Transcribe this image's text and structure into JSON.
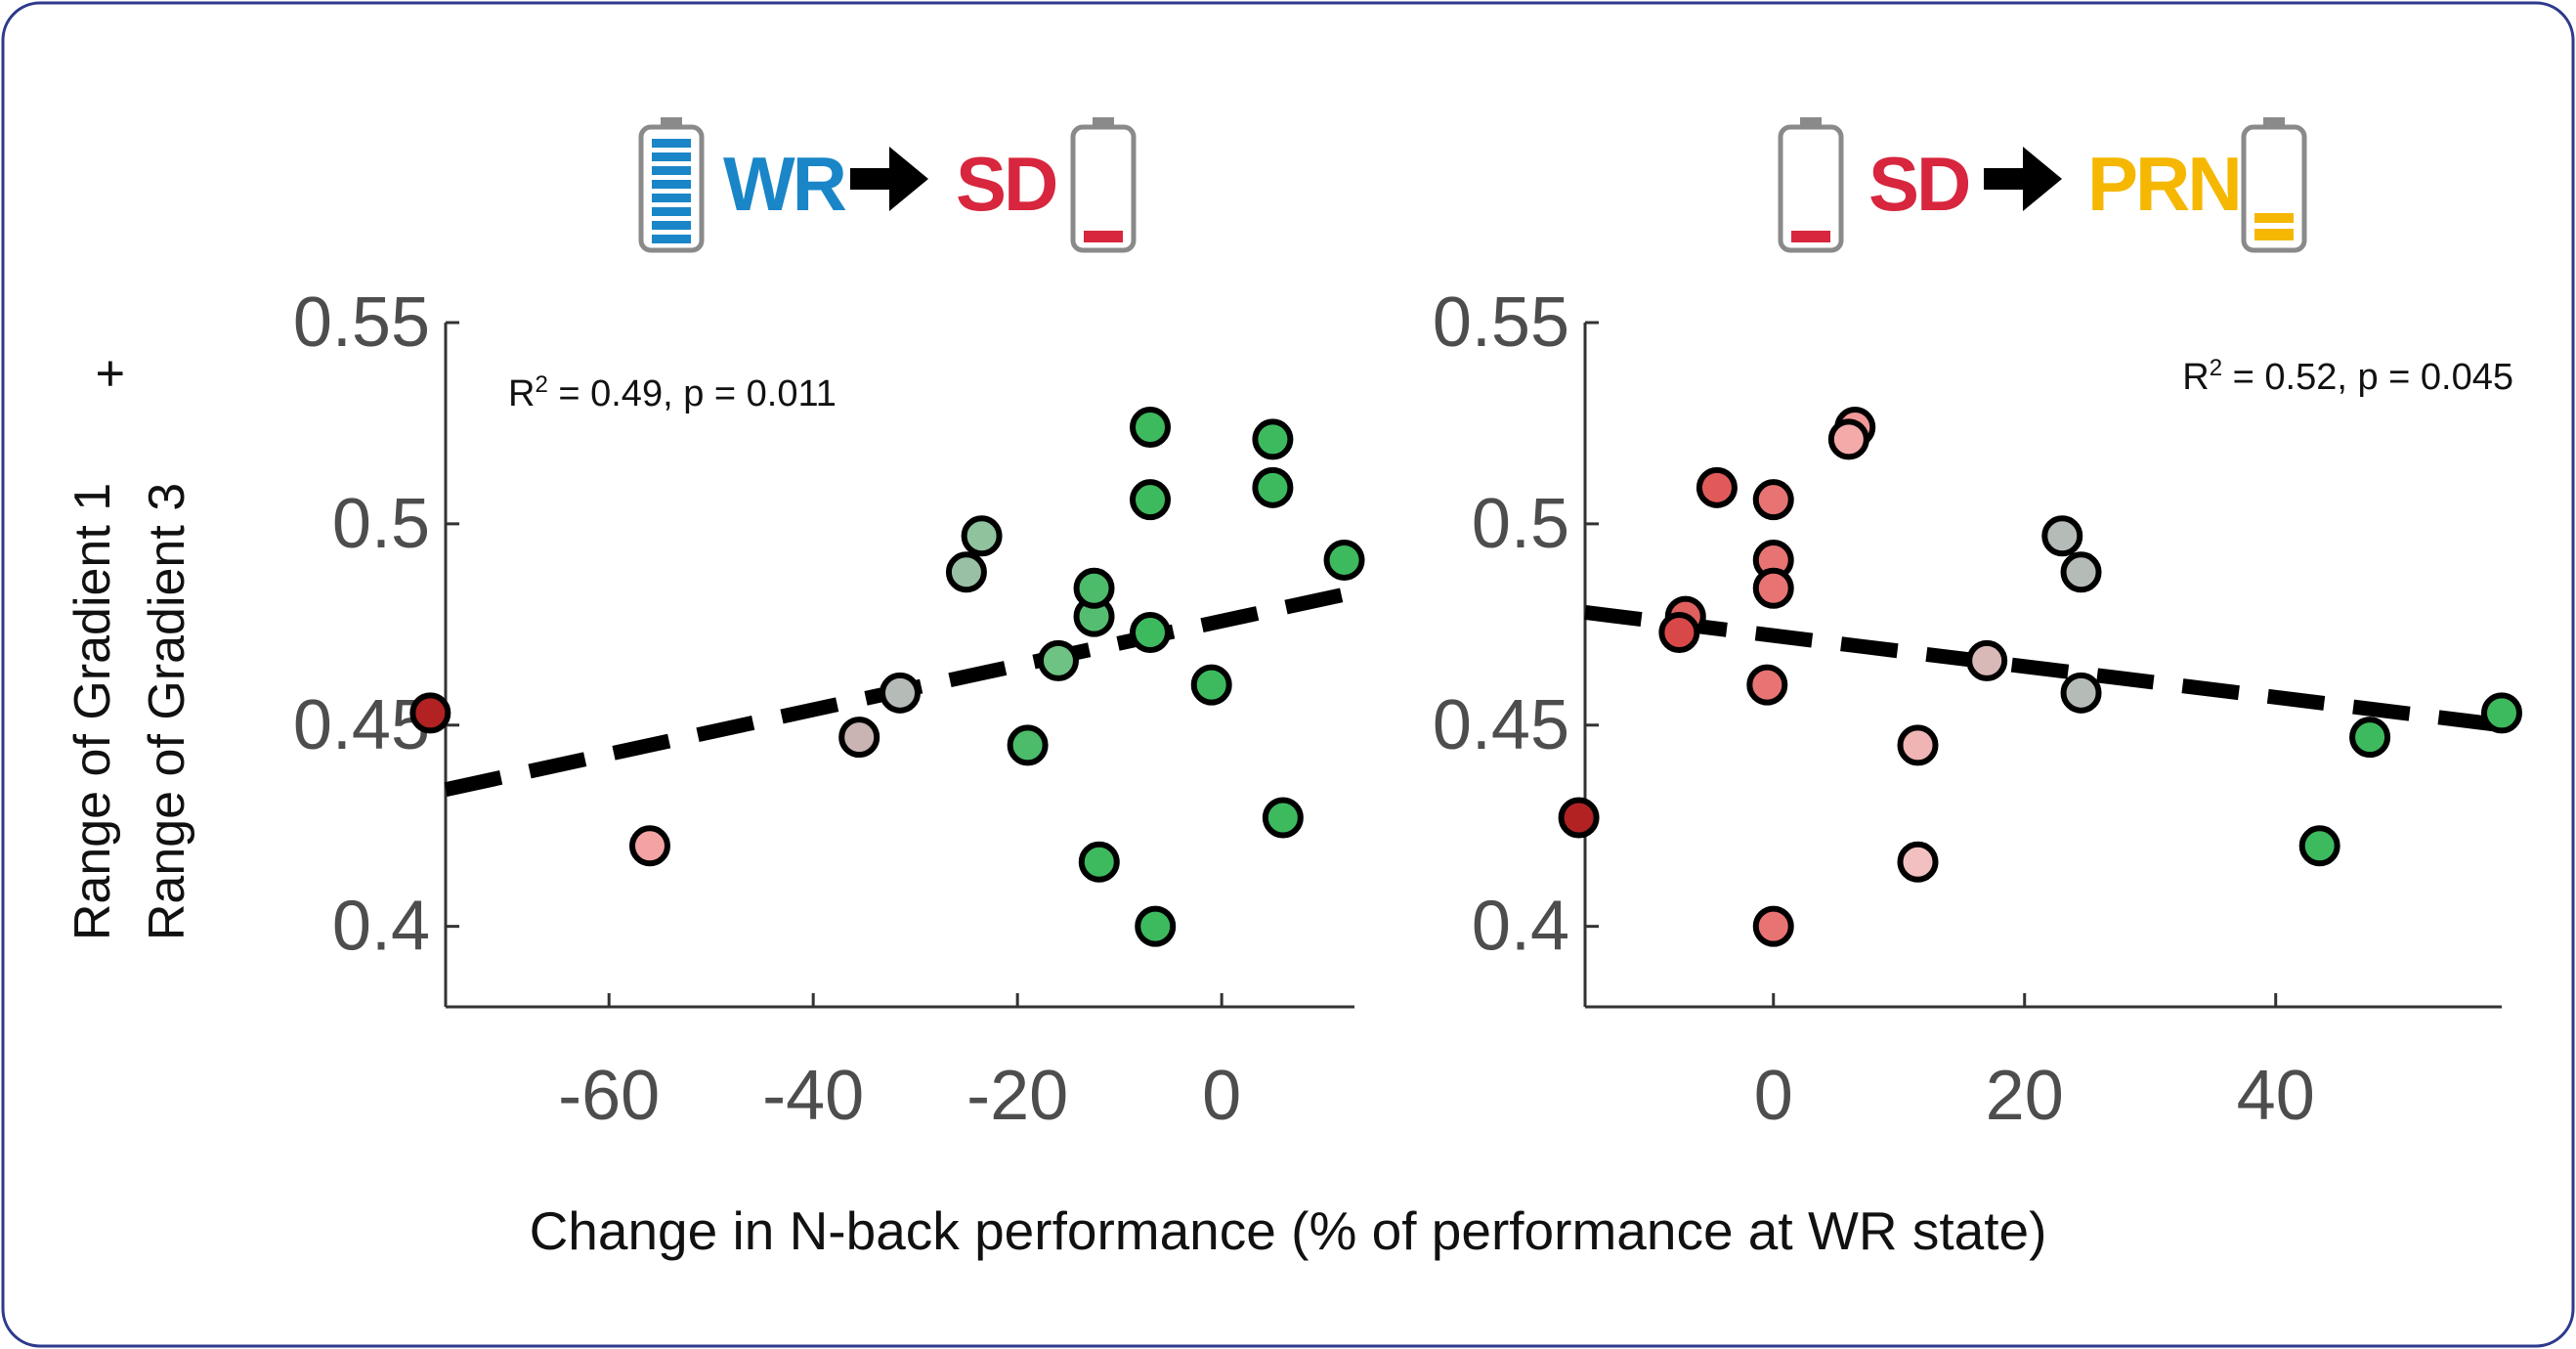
{
  "header": {
    "left": {
      "from_label": "WR",
      "to_label": "SD",
      "from_color": "#1a86c8",
      "to_color": "#d7263d",
      "from_battery": "full",
      "to_battery": "low"
    },
    "right": {
      "from_label": "SD",
      "to_label": "PRN",
      "from_color": "#d7263d",
      "to_color": "#f5b700",
      "from_battery": "low",
      "to_battery": "medium"
    }
  },
  "y_axis_title": {
    "line1": "Range of Gradient 1",
    "line2": "Range of Gradient 3",
    "plus": "+"
  },
  "x_axis_title": "Change in N-back performance (% of performance at WR state)",
  "colors": {
    "border": "#2e3a8c",
    "regression": "#000000",
    "marker_edge": "#000000"
  },
  "chart_data": [
    {
      "type": "scatter",
      "ylim": [
        0.38,
        0.55
      ],
      "xlim": [
        -76,
        13
      ],
      "yticks": [
        0.4,
        0.45,
        0.5,
        0.55
      ],
      "ytick_labels": [
        "0.4",
        "0.45",
        "0.5",
        "0.55"
      ],
      "xticks": [
        -60,
        -40,
        -20,
        0
      ],
      "xtick_labels": [
        "-60",
        "-40",
        "-20",
        "0"
      ],
      "stat_label": {
        "r2_prefix": "R",
        "r2_sup": "2",
        "rest": " = 0.49, p = 0.011"
      },
      "regression": {
        "x": [
          -76,
          13
        ],
        "y": [
          0.434,
          0.483
        ]
      },
      "points": [
        {
          "x": -77.5,
          "y": 0.453,
          "color": "#b22222"
        },
        {
          "x": -56,
          "y": 0.42,
          "color": "#f4a3a3"
        },
        {
          "x": -35.5,
          "y": 0.447,
          "color": "#c9b3b3"
        },
        {
          "x": -31.5,
          "y": 0.458,
          "color": "#b5bcb8"
        },
        {
          "x": -25,
          "y": 0.488,
          "color": "#99bfa4"
        },
        {
          "x": -23.5,
          "y": 0.497,
          "color": "#8ec39d"
        },
        {
          "x": -19,
          "y": 0.445,
          "color": "#4cbb6a"
        },
        {
          "x": -16,
          "y": 0.466,
          "color": "#6ec283"
        },
        {
          "x": -12.5,
          "y": 0.477,
          "color": "#55bd71"
        },
        {
          "x": -12.5,
          "y": 0.484,
          "color": "#4cbb6a"
        },
        {
          "x": -12,
          "y": 0.416,
          "color": "#3dba5e"
        },
        {
          "x": -7,
          "y": 0.524,
          "color": "#3dba5e"
        },
        {
          "x": -7,
          "y": 0.506,
          "color": "#3dba5e"
        },
        {
          "x": -7,
          "y": 0.473,
          "color": "#3dba5e"
        },
        {
          "x": -6.5,
          "y": 0.4,
          "color": "#3dba5e"
        },
        {
          "x": -1,
          "y": 0.46,
          "color": "#3dba5e"
        },
        {
          "x": 5,
          "y": 0.521,
          "color": "#3dba5e"
        },
        {
          "x": 5,
          "y": 0.509,
          "color": "#3dba5e"
        },
        {
          "x": 6,
          "y": 0.427,
          "color": "#3dba5e"
        },
        {
          "x": 12,
          "y": 0.491,
          "color": "#3dba5e"
        }
      ]
    },
    {
      "type": "scatter",
      "ylim": [
        0.38,
        0.55
      ],
      "xlim": [
        -15,
        58
      ],
      "yticks": [
        0.4,
        0.45,
        0.5,
        0.55
      ],
      "ytick_labels": [
        "0.4",
        "0.45",
        "0.5",
        "0.55"
      ],
      "xticks": [
        0,
        20,
        40
      ],
      "xtick_labels": [
        "0",
        "20",
        "40"
      ],
      "stat_label": {
        "r2_prefix": "R",
        "r2_sup": "2",
        "rest": " = 0.52, p = 0.045"
      },
      "regression": {
        "x": [
          -15,
          58
        ],
        "y": [
          0.478,
          0.45
        ]
      },
      "points": [
        {
          "x": -15.5,
          "y": 0.427,
          "color": "#b22222"
        },
        {
          "x": -7,
          "y": 0.477,
          "color": "#e06060"
        },
        {
          "x": -7.5,
          "y": 0.473,
          "color": "#d94848"
        },
        {
          "x": -4.5,
          "y": 0.509,
          "color": "#e05a5a"
        },
        {
          "x": 0,
          "y": 0.506,
          "color": "#e87373"
        },
        {
          "x": 0,
          "y": 0.491,
          "color": "#e87373"
        },
        {
          "x": 0,
          "y": 0.484,
          "color": "#e87373"
        },
        {
          "x": -0.5,
          "y": 0.46,
          "color": "#e87373"
        },
        {
          "x": 0,
          "y": 0.4,
          "color": "#e87373"
        },
        {
          "x": 6.5,
          "y": 0.524,
          "color": "#f19898"
        },
        {
          "x": 6,
          "y": 0.521,
          "color": "#f5aaaa"
        },
        {
          "x": 11.5,
          "y": 0.445,
          "color": "#f0b4b4"
        },
        {
          "x": 11.5,
          "y": 0.416,
          "color": "#f2c0c0"
        },
        {
          "x": 17,
          "y": 0.466,
          "color": "#d9b8b8"
        },
        {
          "x": 23,
          "y": 0.497,
          "color": "#b5bcb8"
        },
        {
          "x": 24.5,
          "y": 0.488,
          "color": "#b5bcb8"
        },
        {
          "x": 24.5,
          "y": 0.458,
          "color": "#b5bcb8"
        },
        {
          "x": 43.5,
          "y": 0.42,
          "color": "#3dba5e"
        },
        {
          "x": 47.5,
          "y": 0.447,
          "color": "#3dba5e"
        },
        {
          "x": 58,
          "y": 0.453,
          "color": "#3dba5e"
        }
      ]
    }
  ]
}
